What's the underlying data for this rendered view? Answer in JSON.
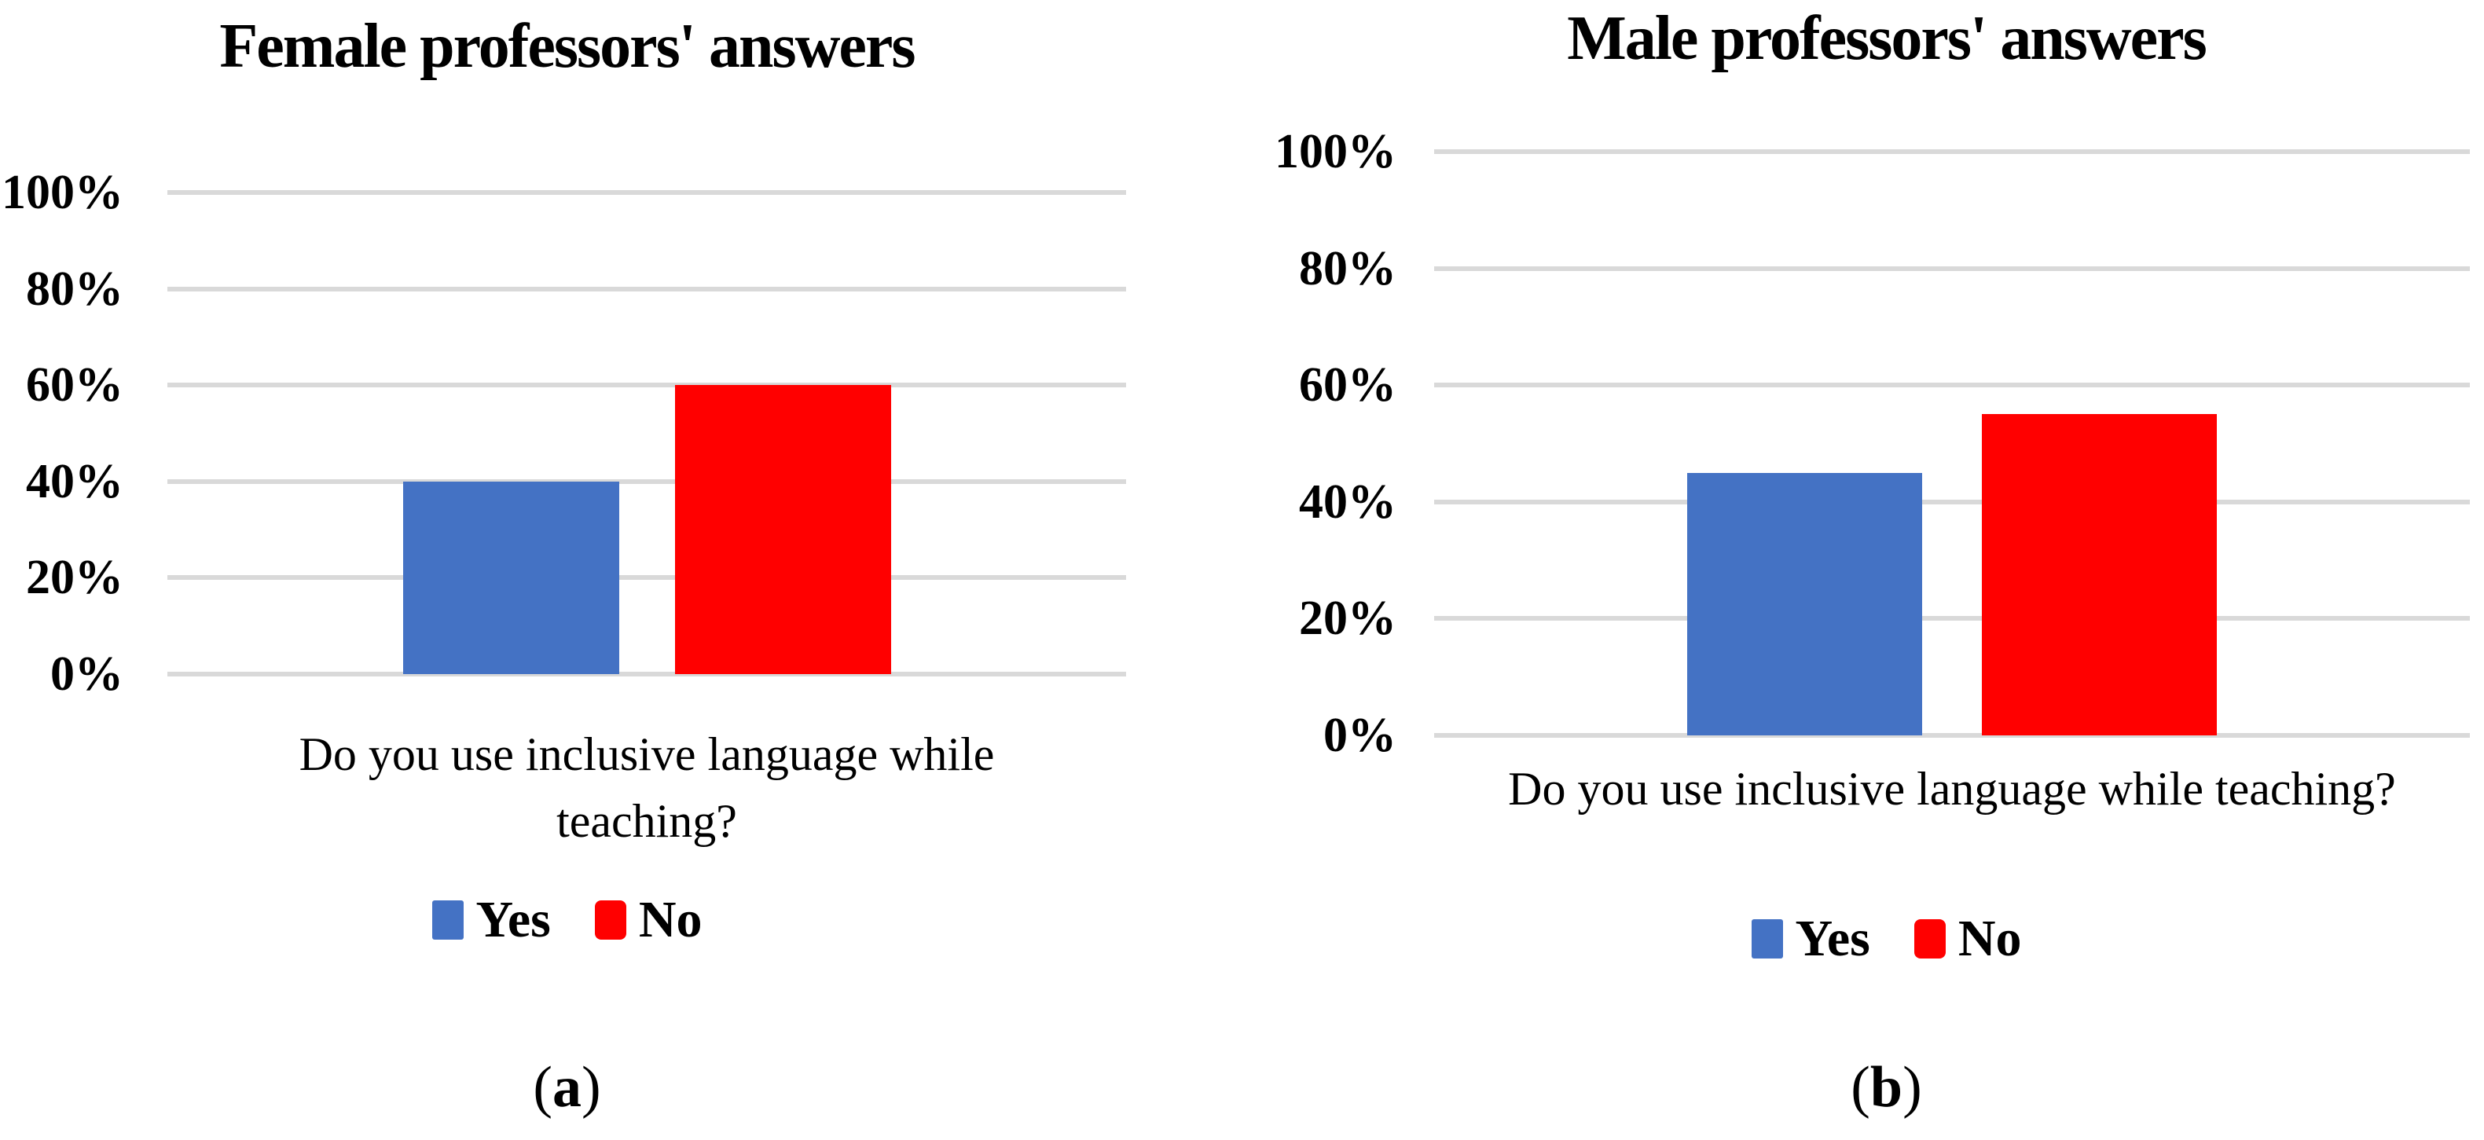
{
  "figure": {
    "background": "#FFFFFF",
    "gridline_color": "#D9D9D9",
    "text_color": "#000000"
  },
  "chart_data": [
    {
      "type": "bar",
      "title": "Female professors' answers",
      "panel_label": {
        "open": "(",
        "letter": "a",
        "close": ")"
      },
      "categories": [
        "Do you use inclusive language while teaching?"
      ],
      "category_display_lines": [
        "Do you use inclusive language while",
        "teaching?"
      ],
      "series": [
        {
          "name": "Yes",
          "values": [
            40
          ],
          "color": "#4472C4"
        },
        {
          "name": "No",
          "values": [
            60
          ],
          "color": "#FF0000"
        }
      ],
      "xlabel": "",
      "ylabel": "",
      "ylim": [
        0,
        100
      ],
      "ytick_labels": [
        "0%",
        "20%",
        "40%",
        "60%",
        "80%",
        "100%"
      ],
      "grid": true,
      "legend_position": "bottom"
    },
    {
      "type": "bar",
      "title": "Male professors' answers",
      "panel_label": {
        "open": "(",
        "letter": "b",
        "close": ")"
      },
      "categories": [
        "Do you use inclusive language while teaching?"
      ],
      "category_display_lines": [
        "Do you use inclusive language while teaching?"
      ],
      "series": [
        {
          "name": "Yes",
          "values": [
            45
          ],
          "color": "#4472C4"
        },
        {
          "name": "No",
          "values": [
            55
          ],
          "color": "#FF0000"
        }
      ],
      "xlabel": "",
      "ylabel": "",
      "ylim": [
        0,
        100
      ],
      "ytick_labels": [
        "0%",
        "20%",
        "40%",
        "60%",
        "80%",
        "100%"
      ],
      "grid": true,
      "legend_position": "bottom"
    }
  ]
}
